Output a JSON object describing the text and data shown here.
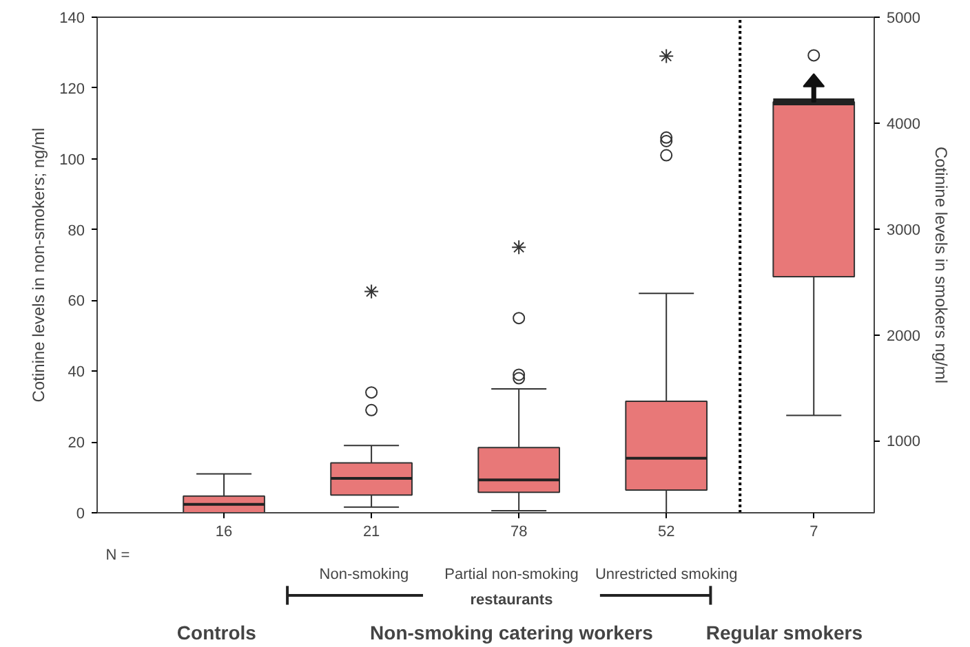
{
  "chart_data": {
    "type": "box",
    "categories": [
      "16",
      "21",
      "78",
      "52",
      "7"
    ],
    "ylabel": "Cotinine levels in non-smokers; ng/ml",
    "y2label": "Cotinine levels in smokers ng/ml",
    "ylim": [
      0,
      140
    ],
    "yticks": [
      0,
      20,
      40,
      60,
      80,
      100,
      120,
      140
    ],
    "y2lim": [
      320,
      5000
    ],
    "y2ticks": [
      1000,
      2000,
      3000,
      4000,
      5000
    ],
    "grid": false,
    "series": [
      {
        "color": "#e87878",
        "boxes": [
          {
            "low": 0,
            "q1": 0,
            "median": 2.4,
            "q3": 4.7,
            "high": 11
          },
          {
            "low": 1.6,
            "q1": 5,
            "median": 9.7,
            "q3": 14.1,
            "high": 19,
            "outliers": [
              29,
              34
            ]
          },
          {
            "low": 0.6,
            "q1": 5.8,
            "median": 9.3,
            "q3": 18.4,
            "high": 35,
            "outliers": [
              38,
              39,
              55
            ]
          },
          {
            "low": 0,
            "q1": 6.4,
            "median": 15.4,
            "q3": 31.5,
            "high": 62,
            "outliers": [
              101,
              105,
              106
            ]
          },
          null
        ]
      },
      {
        "axis": "y2",
        "color": "#e87878",
        "boxes": [
          null,
          null,
          null,
          null,
          {
            "low": 1240,
            "q1": 2550,
            "median": 4200,
            "q3": 4200,
            "high": 4200,
            "outliers": [
              4640
            ]
          }
        ]
      },
      {
        "type": "scatter",
        "marker": "cross",
        "color": "#333333",
        "x": [
          "21",
          "78",
          "52"
        ],
        "values": [
          62.5,
          75,
          129
        ]
      }
    ],
    "annotations": [
      "N =",
      "Non-smoking",
      "Partial non-smoking",
      "Unrestricted smoking",
      "restaurants",
      "Controls",
      "Non-smoking catering workers",
      "Regular smokers"
    ]
  }
}
